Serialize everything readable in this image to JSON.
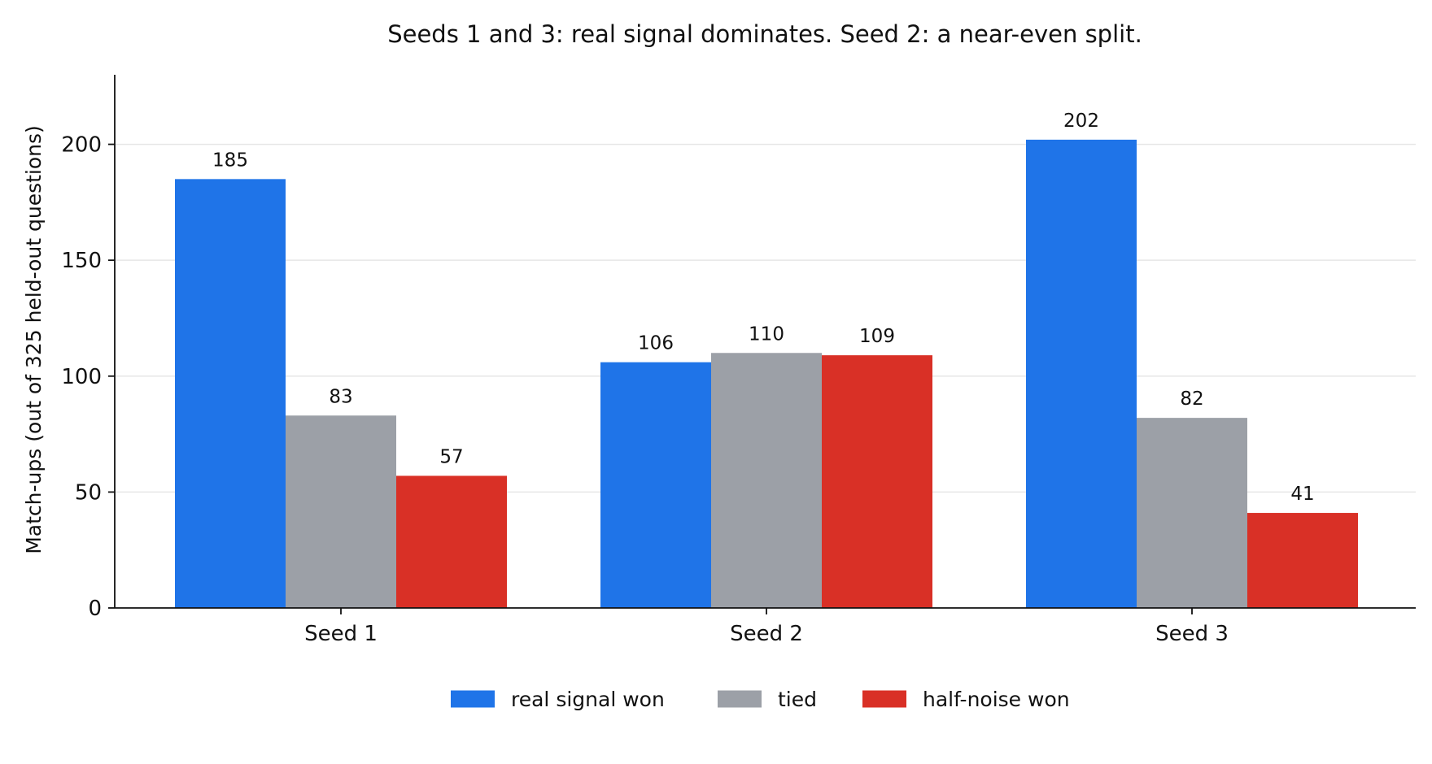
{
  "chart_data": {
    "type": "bar",
    "title": "Seeds 1 and 3: real signal dominates. Seed 2: a near-even split.",
    "xlabel": "",
    "ylabel": "Match-ups (out of 325 held-out questions)",
    "categories": [
      "Seed 1",
      "Seed 2",
      "Seed 3"
    ],
    "series": [
      {
        "name": "real signal won",
        "color": "#1f74e8",
        "values": [
          185,
          106,
          202
        ]
      },
      {
        "name": "tied",
        "color": "#9ca0a7",
        "values": [
          83,
          110,
          82
        ]
      },
      {
        "name": "half-noise won",
        "color": "#d93026",
        "values": [
          57,
          109,
          41
        ]
      }
    ],
    "ylim": [
      0,
      230
    ],
    "yticks": [
      0,
      50,
      100,
      150,
      200
    ],
    "grid": "horizontal",
    "legend_position": "bottom-center"
  }
}
